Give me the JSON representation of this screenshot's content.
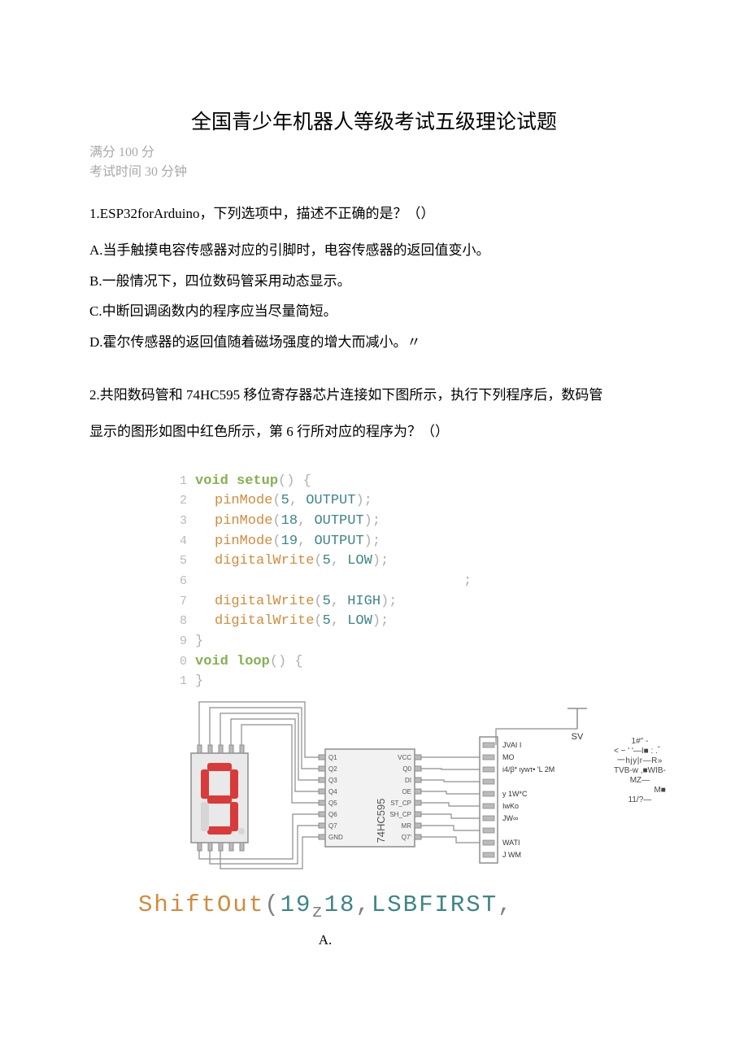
{
  "title": "全国青少年机器人等级考试五级理论试题",
  "meta": {
    "full_marks": "满分 100 分",
    "time": "考试时间 30 分钟"
  },
  "q1": {
    "stem": "1.ESP32forArduino，下列选项中，描述不正确的是？（）",
    "A": "A.当手触摸电容传感器对应的引脚时，电容传感器的返回值变小。",
    "B": "B.一般情况下，四位数码管采用动态显示。",
    "C": "C.中断回调函数内的程序应当尽量简短。",
    "D": "D.霍尔传感器的返回值随着磁场强度的增大而减小。〃"
  },
  "q2": {
    "stem1": "2.共阳数码管和 74HC595 移位寄存器芯片连接如下图所示，执行下列程序后，数码管",
    "stem2": "显示的图形如图中红色所示，第 6 行所对应的程序为？（）"
  },
  "code": {
    "lines": [
      {
        "n": "1",
        "tokens": [
          {
            "t": "void ",
            "c": "kw-void"
          },
          {
            "t": "setup",
            "c": "kw-func"
          },
          {
            "t": "() {",
            "c": "punct"
          }
        ]
      },
      {
        "n": "2",
        "indent": 1,
        "tokens": [
          {
            "t": "pinMode",
            "c": "fn"
          },
          {
            "t": "(",
            "c": "punct"
          },
          {
            "t": "5",
            "c": "num"
          },
          {
            "t": ", ",
            "c": "punct"
          },
          {
            "t": "OUTPUT",
            "c": "const"
          },
          {
            "t": ");",
            "c": "punct"
          }
        ]
      },
      {
        "n": "3",
        "indent": 1,
        "tokens": [
          {
            "t": "pinMode",
            "c": "fn"
          },
          {
            "t": "(",
            "c": "punct"
          },
          {
            "t": "18",
            "c": "num"
          },
          {
            "t": ", ",
            "c": "punct"
          },
          {
            "t": "OUTPUT",
            "c": "const"
          },
          {
            "t": ");",
            "c": "punct"
          }
        ]
      },
      {
        "n": "4",
        "indent": 1,
        "tokens": [
          {
            "t": "pinMode",
            "c": "fn"
          },
          {
            "t": "(",
            "c": "punct"
          },
          {
            "t": "19",
            "c": "num"
          },
          {
            "t": ", ",
            "c": "punct"
          },
          {
            "t": "OUTPUT",
            "c": "const"
          },
          {
            "t": ");",
            "c": "punct"
          }
        ]
      },
      {
        "n": "5",
        "indent": 1,
        "tokens": [
          {
            "t": "digitalWrite",
            "c": "fn"
          },
          {
            "t": "(",
            "c": "punct"
          },
          {
            "t": "5",
            "c": "num"
          },
          {
            "t": ", ",
            "c": "punct"
          },
          {
            "t": "LOW",
            "c": "const"
          },
          {
            "t": ");",
            "c": "punct"
          }
        ]
      },
      {
        "n": "6",
        "indent": 40,
        "tokens": [
          {
            "t": ";",
            "c": "punct"
          }
        ]
      },
      {
        "n": "7",
        "indent": 1,
        "tokens": [
          {
            "t": "digitalWrite",
            "c": "fn"
          },
          {
            "t": "(",
            "c": "punct"
          },
          {
            "t": "5",
            "c": "num"
          },
          {
            "t": ", ",
            "c": "punct"
          },
          {
            "t": "HIGH",
            "c": "const"
          },
          {
            "t": ");",
            "c": "punct"
          }
        ]
      },
      {
        "n": "8",
        "indent": 1,
        "tokens": [
          {
            "t": "digitalWrite",
            "c": "fn"
          },
          {
            "t": "(",
            "c": "punct"
          },
          {
            "t": "5",
            "c": "num"
          },
          {
            "t": ", ",
            "c": "punct"
          },
          {
            "t": "LOW",
            "c": "const"
          },
          {
            "t": ");",
            "c": "punct"
          }
        ]
      },
      {
        "n": "9",
        "tokens": [
          {
            "t": "}",
            "c": "punct"
          }
        ]
      },
      {
        "n": "0",
        "tokens": [
          {
            "t": "void ",
            "c": "kw-void"
          },
          {
            "t": "loop",
            "c": "kw-func"
          },
          {
            "t": "() {",
            "c": "punct"
          }
        ]
      },
      {
        "n": "1",
        "tokens": [
          {
            "t": "}",
            "c": "punct"
          }
        ]
      }
    ]
  },
  "diagram": {
    "seg_digit": "9",
    "seg_color": "#d93a3a",
    "seg_body": "#e9e9e9",
    "seg_off": "#d6d6d6",
    "wire_color": "#8d8d8d",
    "gnd_label": "SV",
    "chip": {
      "label": "74HC595",
      "left_pins": [
        "Q1",
        "Q2",
        "Q3",
        "Q4",
        "Q5",
        "Q6",
        "Q7",
        "GND"
      ],
      "right_pins": [
        "VCC",
        "Q0",
        "DI",
        "OE",
        "ST_CP",
        "SH_CP",
        "MR",
        "Q7'"
      ]
    },
    "connector_labels": [
      "JVAI I",
      "MO",
      "i4/β* ιywτ• 'L 2M",
      "y 1W*C",
      "IwKo",
      "JW∞",
      "WATI",
      "J WM"
    ],
    "garble": [
      "1#\" -",
      "< ~ ' '—I■ : .゛",
      "一hjy|r—R»",
      "TVB-w ,■WIB-",
      "MZ—",
      "M■",
      "11/?—"
    ]
  },
  "shift": {
    "fn": "ShiftOut",
    "lp": "(",
    "a1": "19",
    "sub": "z",
    "a2": "18",
    "comma": ",",
    "c": "LSBFIRST",
    "comma2": ","
  },
  "optA": "A."
}
